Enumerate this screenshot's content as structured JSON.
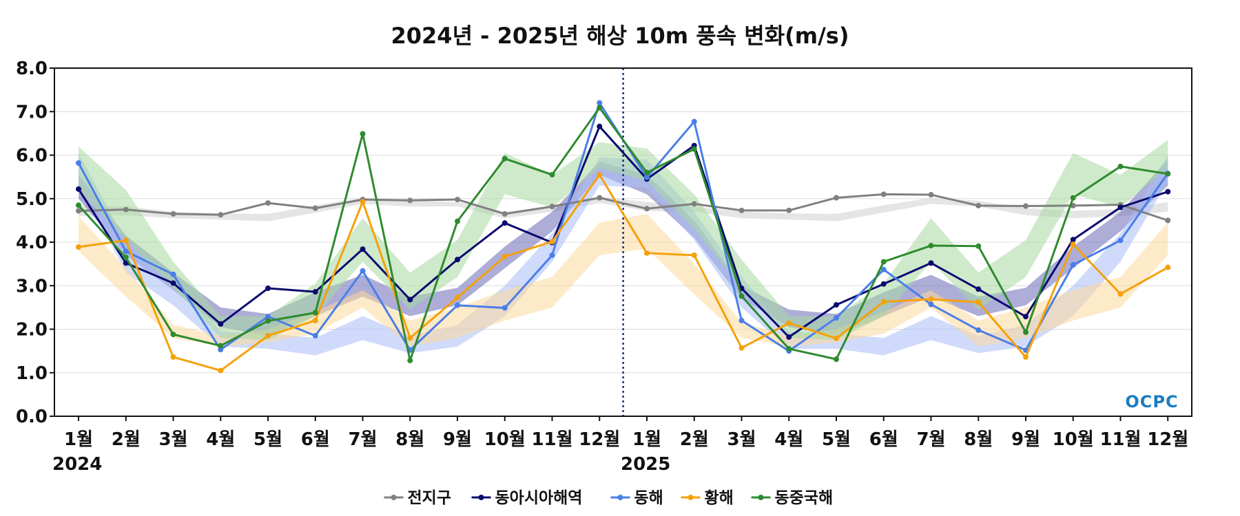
{
  "chart_data": {
    "type": "line",
    "title": "2024년 - 2025년 해상 10m 풍속 변화(m/s)",
    "xlabel": "",
    "ylabel": "",
    "ylim": [
      0,
      8
    ],
    "yticks": [
      "0.0",
      "1.0",
      "2.0",
      "3.0",
      "4.0",
      "5.0",
      "6.0",
      "7.0",
      "8.0"
    ],
    "categories": [
      "1월",
      "2월",
      "3월",
      "4월",
      "5월",
      "6월",
      "7월",
      "8월",
      "9월",
      "10월",
      "11월",
      "12월",
      "1월",
      "2월",
      "3월",
      "4월",
      "5월",
      "6월",
      "7월",
      "8월",
      "9월",
      "10월",
      "11월",
      "12월"
    ],
    "year_labels": [
      {
        "index": 0,
        "label": "2024"
      },
      {
        "index": 12,
        "label": "2025"
      }
    ],
    "year_divider_after_index": 11,
    "grid": true,
    "legend_position": "bottom",
    "series": [
      {
        "name": "전지구",
        "color": "#808080",
        "values": [
          4.72,
          4.75,
          4.65,
          4.63,
          4.9,
          4.78,
          4.98,
          4.96,
          4.98,
          4.65,
          4.82,
          5.02,
          4.77,
          4.88,
          4.73,
          4.73,
          5.02,
          5.1,
          5.09,
          4.84,
          4.83,
          4.84,
          4.86,
          4.5
        ],
        "band_color": "#d0d0d0",
        "band_low": [
          4.6,
          4.62,
          4.55,
          4.52,
          4.48,
          4.68,
          4.88,
          4.82,
          4.82,
          4.55,
          4.7,
          4.9,
          4.72,
          4.7,
          4.55,
          4.52,
          4.48,
          4.68,
          4.88,
          4.82,
          4.62,
          4.55,
          4.6,
          4.7
        ],
        "band_high": [
          4.85,
          4.82,
          4.7,
          4.66,
          4.65,
          4.85,
          5.02,
          4.95,
          4.92,
          4.7,
          4.82,
          5.05,
          4.92,
          4.82,
          4.7,
          4.66,
          4.65,
          4.85,
          5.02,
          4.95,
          4.78,
          4.72,
          4.76,
          4.92
        ]
      },
      {
        "name": "동아시아해역",
        "color": "#0a0a6e",
        "values": [
          5.22,
          3.52,
          3.06,
          2.12,
          2.94,
          2.86,
          3.84,
          2.68,
          3.6,
          4.44,
          3.99,
          6.66,
          5.45,
          6.22,
          2.94,
          1.82,
          2.56,
          3.04,
          3.52,
          2.92,
          2.29,
          4.06,
          4.8,
          5.16
        ],
        "band_color": "#6a6ab8",
        "band_low": [
          5.0,
          3.7,
          2.9,
          2.05,
          1.85,
          2.3,
          2.75,
          2.3,
          2.55,
          3.4,
          4.25,
          5.55,
          5.1,
          4.1,
          2.7,
          2.05,
          1.85,
          2.3,
          2.75,
          2.3,
          2.55,
          3.4,
          4.25,
          5.3
        ],
        "band_high": [
          5.55,
          4.15,
          3.3,
          2.5,
          2.35,
          2.85,
          3.25,
          2.75,
          2.95,
          3.9,
          4.7,
          5.85,
          5.55,
          4.5,
          3.0,
          2.45,
          2.35,
          2.85,
          3.25,
          2.75,
          2.95,
          3.9,
          4.7,
          5.9
        ]
      },
      {
        "name": "동해",
        "color": "#4a7ee8",
        "values": [
          5.82,
          3.79,
          3.26,
          1.53,
          2.29,
          1.85,
          3.34,
          1.52,
          2.55,
          2.49,
          3.7,
          7.2,
          5.49,
          6.77,
          2.2,
          1.5,
          2.26,
          3.37,
          2.57,
          1.98,
          1.52,
          3.48,
          4.04,
          5.58
        ],
        "band_color": "#a9bdf8",
        "band_low": [
          5.4,
          3.3,
          2.55,
          1.6,
          1.55,
          1.4,
          1.75,
          1.45,
          1.6,
          2.3,
          3.55,
          5.3,
          5.25,
          4.05,
          2.5,
          1.55,
          1.55,
          1.4,
          1.75,
          1.45,
          1.6,
          2.3,
          3.55,
          5.4
        ],
        "band_high": [
          6.05,
          4.0,
          3.25,
          1.95,
          1.9,
          1.8,
          2.3,
          1.85,
          2.1,
          3.0,
          4.2,
          5.95,
          5.9,
          4.7,
          3.2,
          1.95,
          1.9,
          1.8,
          2.3,
          1.85,
          2.1,
          3.0,
          4.2,
          6.0
        ]
      },
      {
        "name": "황해",
        "color": "#f5a10a",
        "values": [
          3.89,
          4.04,
          1.36,
          1.05,
          1.85,
          2.2,
          4.93,
          1.8,
          2.73,
          3.67,
          4.01,
          5.55,
          3.75,
          3.7,
          1.57,
          2.14,
          1.79,
          2.63,
          2.69,
          2.62,
          1.36,
          3.95,
          2.81,
          3.42
        ],
        "band_color": "#fcd99a",
        "band_low": [
          3.8,
          2.75,
          1.8,
          1.6,
          1.7,
          1.9,
          2.5,
          1.6,
          1.8,
          2.2,
          2.5,
          3.7,
          3.85,
          2.8,
          1.8,
          1.6,
          1.7,
          1.9,
          2.5,
          1.6,
          1.8,
          2.2,
          2.5,
          3.7
        ],
        "band_high": [
          4.6,
          3.4,
          2.1,
          1.85,
          2.0,
          2.4,
          2.9,
          2.2,
          2.5,
          2.9,
          3.2,
          4.45,
          4.65,
          3.5,
          2.15,
          1.85,
          2.0,
          2.4,
          2.9,
          2.2,
          2.5,
          2.9,
          3.2,
          4.45
        ]
      },
      {
        "name": "동중국해",
        "color": "#2e8b2e",
        "values": [
          4.85,
          3.65,
          1.88,
          1.62,
          2.19,
          2.38,
          6.49,
          1.28,
          4.48,
          5.92,
          5.55,
          7.09,
          5.6,
          6.14,
          2.76,
          1.55,
          1.31,
          3.55,
          3.92,
          3.91,
          1.93,
          5.02,
          5.74,
          5.57
        ],
        "band_color": "#a8d8a0",
        "band_low": [
          5.2,
          4.05,
          2.95,
          1.8,
          1.75,
          2.3,
          3.55,
          2.45,
          3.2,
          5.1,
          4.8,
          5.7,
          5.4,
          4.3,
          2.95,
          1.8,
          1.75,
          2.3,
          3.55,
          2.45,
          3.2,
          5.1,
          4.8,
          5.7
        ],
        "band_high": [
          6.2,
          5.2,
          3.55,
          2.3,
          2.3,
          3.05,
          4.55,
          3.3,
          4.05,
          6.05,
          5.55,
          6.3,
          6.15,
          5.1,
          3.6,
          2.3,
          2.3,
          3.05,
          4.55,
          3.3,
          4.05,
          6.05,
          5.55,
          6.35
        ]
      }
    ]
  },
  "logo": {
    "text": "OCPC"
  }
}
